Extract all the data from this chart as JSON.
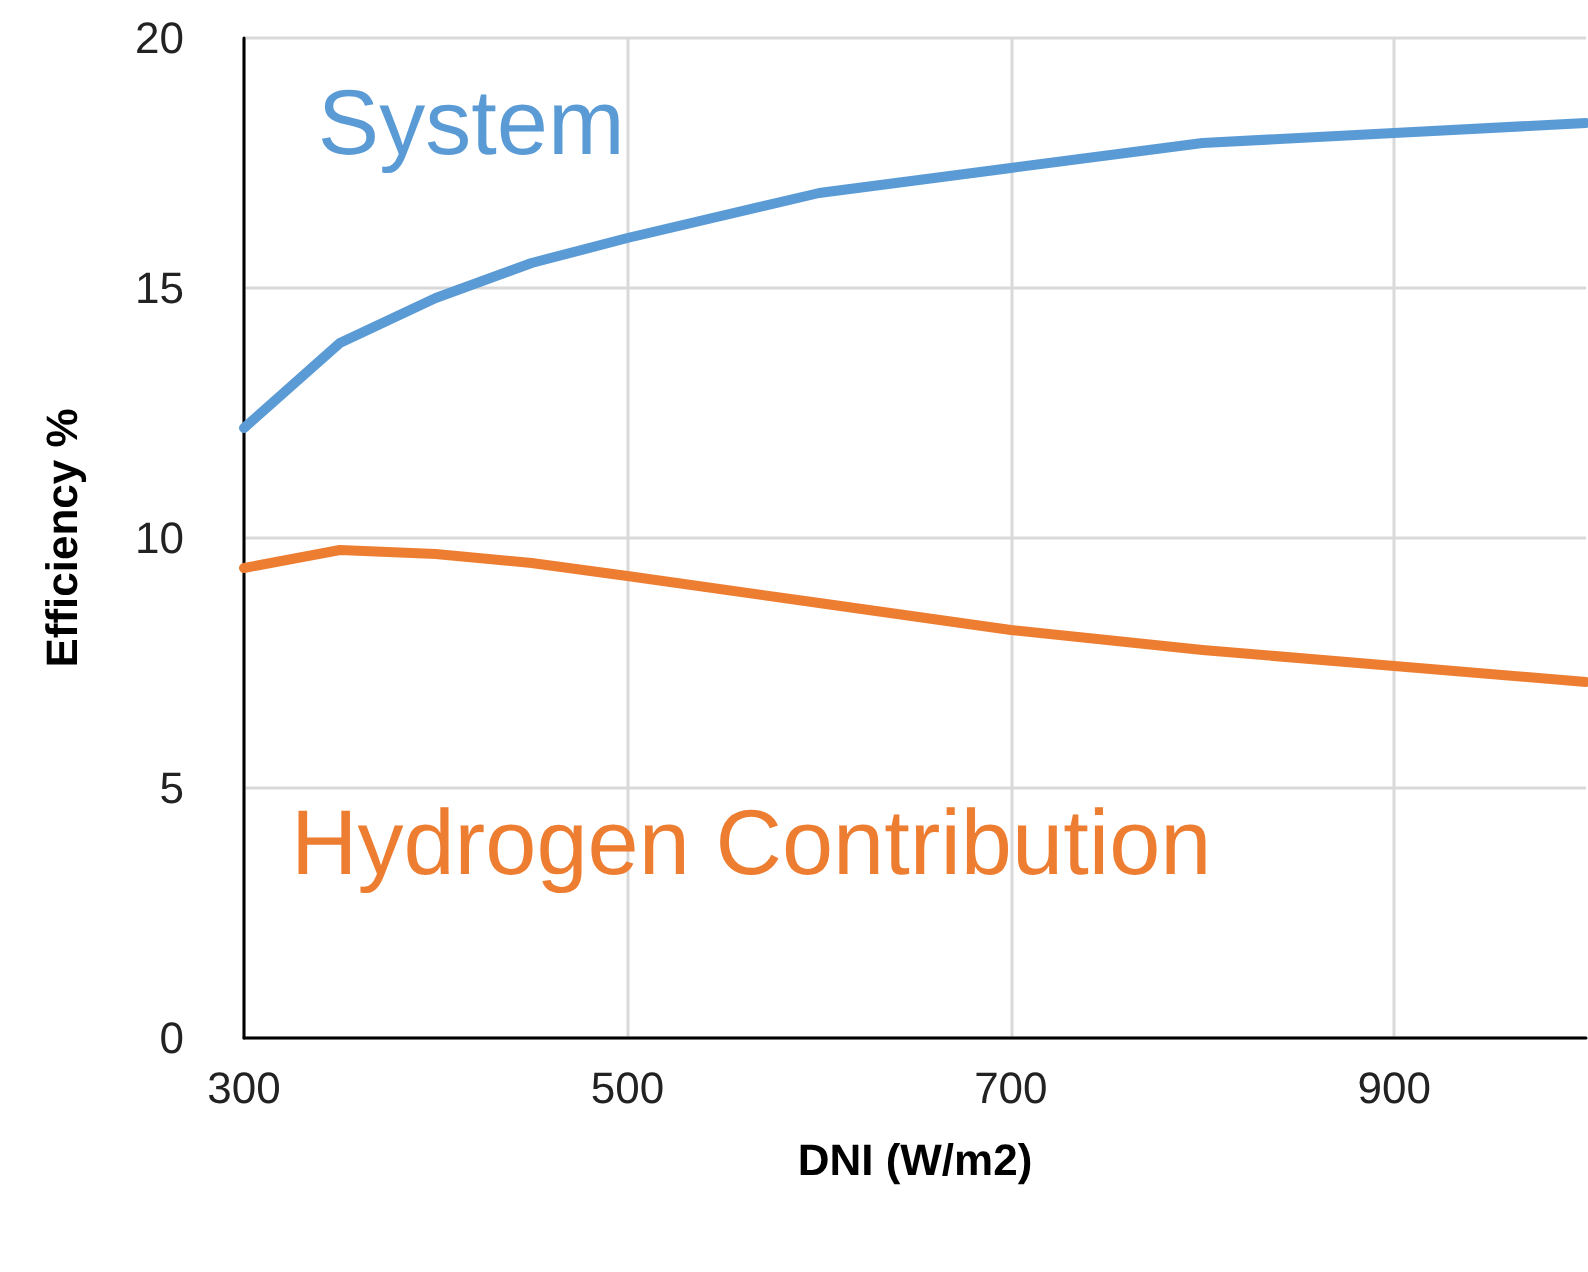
{
  "chart_data": {
    "type": "line",
    "xlabel": "DNI (W/m2)",
    "ylabel": "Efficiency %",
    "x": [
      300,
      350,
      400,
      450,
      500,
      600,
      700,
      800,
      900,
      1000
    ],
    "series": [
      {
        "name": "System",
        "color": "#5b9bd5",
        "values": [
          12.2,
          13.9,
          14.8,
          15.5,
          16.0,
          16.9,
          17.4,
          17.9,
          18.1,
          18.3
        ]
      },
      {
        "name": "Hydrogen Contribution",
        "color": "#ed7d31",
        "values": [
          9.4,
          9.76,
          9.68,
          9.5,
          9.24,
          8.7,
          8.16,
          7.76,
          7.44,
          7.12
        ]
      }
    ],
    "xlim": [
      300,
      1000
    ],
    "xticks": [
      300,
      500,
      700,
      900
    ],
    "ylim": [
      0,
      20
    ],
    "yticks": [
      0,
      5,
      10,
      15,
      20
    ],
    "grid": true,
    "legend": false,
    "marker": "none",
    "line_style": "solid"
  }
}
